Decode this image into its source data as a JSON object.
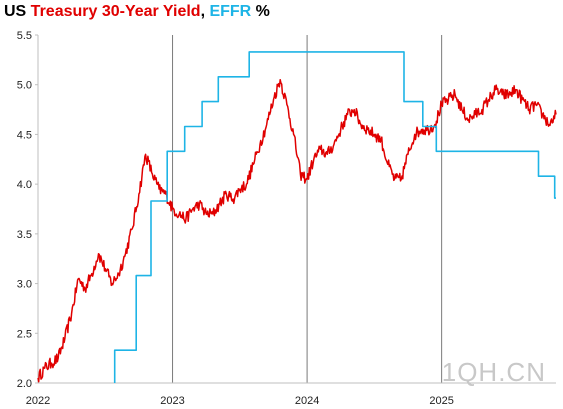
{
  "title": {
    "part1": "US ",
    "part2": "Treasury 30-Year Yield",
    "part3": ", ",
    "part4": "EFFR",
    "part5": " %"
  },
  "watermark": "1QH.CN",
  "colors": {
    "yield": "#e00000",
    "effr": "#1eb4e6",
    "year_lines": "#7a7a7a",
    "axis": "#bfbfbf"
  },
  "chart_data": {
    "type": "line",
    "title": "US Treasury 30-Year Yield, EFFR %",
    "xlabel": "",
    "ylabel": "",
    "xlim": [
      2022.0,
      2025.85
    ],
    "ylim": [
      2.0,
      5.5
    ],
    "yticks": [
      "2.0",
      "2.5",
      "3.0",
      "3.5",
      "4.0",
      "4.5",
      "5.0",
      "5.5"
    ],
    "xticks": [
      {
        "label": "2022",
        "x": 2022.0
      },
      {
        "label": "2023",
        "x": 2023.0
      },
      {
        "label": "2024",
        "x": 2024.0
      },
      {
        "label": "2025",
        "x": 2025.0
      }
    ],
    "grid": "vertical year lines",
    "legend": "none (colored title)",
    "series": [
      {
        "name": "Treasury 30-Year Yield",
        "color": "#e00000",
        "x": [
          2022.0,
          2022.05,
          2022.1,
          2022.15,
          2022.2,
          2022.25,
          2022.3,
          2022.35,
          2022.4,
          2022.45,
          2022.5,
          2022.55,
          2022.6,
          2022.65,
          2022.7,
          2022.75,
          2022.8,
          2022.85,
          2022.9,
          2022.95,
          2023.0,
          2023.05,
          2023.1,
          2023.15,
          2023.2,
          2023.25,
          2023.3,
          2023.35,
          2023.4,
          2023.45,
          2023.5,
          2023.55,
          2023.6,
          2023.65,
          2023.7,
          2023.75,
          2023.8,
          2023.85,
          2023.9,
          2023.95,
          2024.0,
          2024.05,
          2024.1,
          2024.15,
          2024.2,
          2024.25,
          2024.3,
          2024.35,
          2024.4,
          2024.45,
          2024.5,
          2024.55,
          2024.6,
          2024.65,
          2024.7,
          2024.75,
          2024.8,
          2024.85,
          2024.9,
          2024.95,
          2025.0,
          2025.05,
          2025.1,
          2025.15,
          2025.2,
          2025.25,
          2025.3,
          2025.35,
          2025.4,
          2025.45,
          2025.5,
          2025.55,
          2025.6,
          2025.65,
          2025.7,
          2025.75,
          2025.8,
          2025.85
        ],
        "values": [
          2.05,
          2.15,
          2.2,
          2.25,
          2.45,
          2.7,
          3.05,
          2.95,
          3.1,
          3.3,
          3.15,
          3.0,
          3.1,
          3.3,
          3.55,
          3.9,
          4.3,
          4.1,
          3.95,
          3.9,
          3.75,
          3.7,
          3.65,
          3.75,
          3.8,
          3.7,
          3.7,
          3.8,
          3.9,
          3.85,
          3.95,
          4.0,
          4.2,
          4.4,
          4.6,
          4.85,
          5.05,
          4.8,
          4.5,
          4.1,
          4.05,
          4.25,
          4.35,
          4.3,
          4.4,
          4.55,
          4.7,
          4.75,
          4.6,
          4.55,
          4.5,
          4.45,
          4.2,
          4.05,
          4.05,
          4.3,
          4.5,
          4.55,
          4.55,
          4.6,
          4.8,
          4.85,
          4.9,
          4.75,
          4.65,
          4.7,
          4.75,
          4.85,
          4.95,
          4.9,
          4.9,
          4.95,
          4.85,
          4.75,
          4.8,
          4.7,
          4.6,
          4.7
        ]
      },
      {
        "name": "EFFR",
        "color": "#1eb4e6",
        "step": true,
        "x": [
          2022.57,
          2022.73,
          2022.84,
          2022.96,
          2023.09,
          2023.22,
          2023.34,
          2023.57,
          2024.72,
          2024.86,
          2024.96,
          2025.72,
          2025.84
        ],
        "values": [
          2.33,
          3.08,
          3.83,
          4.33,
          4.58,
          4.83,
          5.08,
          5.33,
          4.83,
          4.58,
          4.33,
          4.08,
          3.86
        ]
      }
    ]
  }
}
